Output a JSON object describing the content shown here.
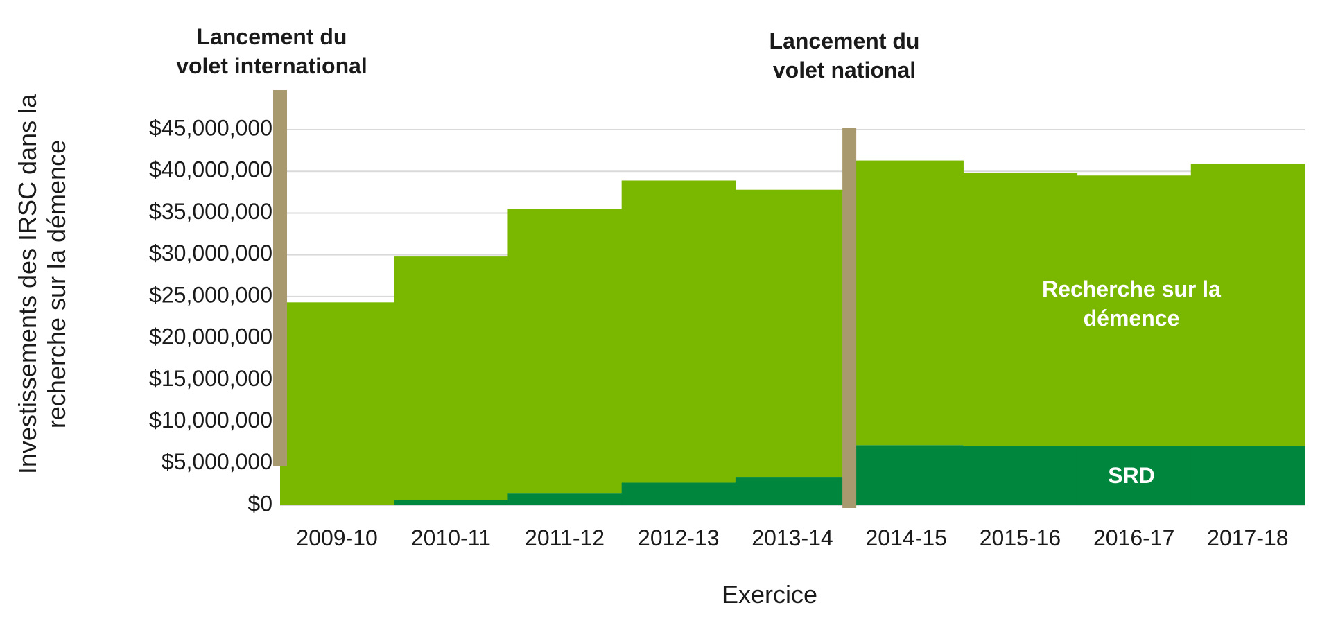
{
  "chart_data": {
    "type": "area",
    "stacked": true,
    "step": true,
    "categories": [
      "2009-10",
      "2010-11",
      "2011-12",
      "2012-13",
      "2013-14",
      "2014-15",
      "2015-16",
      "2016-17",
      "2017-18"
    ],
    "series": [
      {
        "name": "SRD",
        "color": "#00873d",
        "values": [
          0,
          600000,
          1400000,
          2700000,
          3400000,
          7200000,
          7100000,
          7100000,
          7100000
        ]
      },
      {
        "name": "Recherche sur la démence",
        "color": "#7ab800",
        "values": [
          24300000,
          29200000,
          34100000,
          36200000,
          34400000,
          34100000,
          32700000,
          32400000,
          33800000
        ]
      }
    ],
    "series_labels": {
      "srd": "SRD",
      "recherche_line1": "Recherche sur la",
      "recherche_line2": "démence"
    },
    "ylabel_line1": "Investissements des IRSC dans la",
    "ylabel_line2": "recherche sur la démence",
    "xlabel": "Exercice",
    "ylim": [
      0,
      45000000
    ],
    "yticks": [
      0,
      5000000,
      10000000,
      15000000,
      20000000,
      25000000,
      30000000,
      35000000,
      40000000,
      45000000
    ],
    "ytick_labels": [
      "$0",
      "$5,000,000",
      "$10,000,000",
      "$15,000,000",
      "$20,000,000",
      "$25,000,000",
      "$30,000,000",
      "$35,000,000",
      "$40,000,000",
      "$45,000,000"
    ],
    "grid": true,
    "marker_color": "#a89a6e",
    "annotations": [
      {
        "category_index": 0,
        "line1": "Lancement du",
        "line2": "volet international"
      },
      {
        "category_index": 5,
        "line1": "Lancement du",
        "line2": "volet national"
      }
    ]
  }
}
